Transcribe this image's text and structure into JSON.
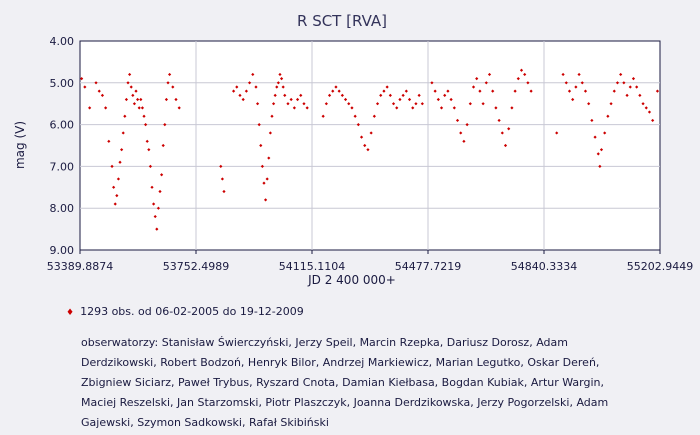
{
  "chart_data": {
    "type": "scatter",
    "title": "R SCT [RVA]",
    "xlabel": "JD 2 400 000+",
    "ylabel": "mag (V)",
    "xlim": [
      53389.8874,
      55202.9449
    ],
    "ylim": [
      4.0,
      9.0
    ],
    "y_inverted": true,
    "grid": true,
    "legend_placement": "bottom-left",
    "marker_color": "#cc0000",
    "x_ticks": [
      "53389.8874",
      "53752.4989",
      "54115.1104",
      "54477.7219",
      "54840.3334",
      "55202.9449"
    ],
    "y_ticks": [
      "4.00",
      "5.00",
      "6.00",
      "7.00",
      "8.00",
      "9.00"
    ],
    "series": [
      {
        "name": "1293 obs. od 06-02-2005 do 19-12-2009",
        "points": [
          [
            53395,
            4.9
          ],
          [
            53405,
            5.1
          ],
          [
            53420,
            5.6
          ],
          [
            53440,
            5.0
          ],
          [
            53450,
            5.2
          ],
          [
            53460,
            5.3
          ],
          [
            53470,
            5.6
          ],
          [
            53480,
            6.4
          ],
          [
            53490,
            7.0
          ],
          [
            53495,
            7.5
          ],
          [
            53500,
            7.9
          ],
          [
            53505,
            7.7
          ],
          [
            53510,
            7.3
          ],
          [
            53515,
            6.9
          ],
          [
            53520,
            6.6
          ],
          [
            53525,
            6.2
          ],
          [
            53530,
            5.8
          ],
          [
            53535,
            5.4
          ],
          [
            53540,
            5.0
          ],
          [
            53545,
            4.8
          ],
          [
            53550,
            5.1
          ],
          [
            53555,
            5.3
          ],
          [
            53560,
            5.5
          ],
          [
            53565,
            5.2
          ],
          [
            53570,
            5.4
          ],
          [
            53575,
            5.6
          ],
          [
            53580,
            5.4
          ],
          [
            53585,
            5.6
          ],
          [
            53590,
            5.8
          ],
          [
            53595,
            6.0
          ],
          [
            53600,
            6.4
          ],
          [
            53605,
            6.6
          ],
          [
            53610,
            7.0
          ],
          [
            53615,
            7.5
          ],
          [
            53620,
            7.9
          ],
          [
            53625,
            8.2
          ],
          [
            53630,
            8.5
          ],
          [
            53635,
            8.0
          ],
          [
            53640,
            7.6
          ],
          [
            53645,
            7.2
          ],
          [
            53650,
            6.5
          ],
          [
            53655,
            6.0
          ],
          [
            53660,
            5.4
          ],
          [
            53665,
            5.0
          ],
          [
            53670,
            4.8
          ],
          [
            53680,
            5.1
          ],
          [
            53690,
            5.4
          ],
          [
            53700,
            5.6
          ],
          [
            53830,
            7.0
          ],
          [
            53835,
            7.3
          ],
          [
            53840,
            7.6
          ],
          [
            53870,
            5.2
          ],
          [
            53880,
            5.1
          ],
          [
            53890,
            5.3
          ],
          [
            53900,
            5.4
          ],
          [
            53910,
            5.2
          ],
          [
            53920,
            5.0
          ],
          [
            53930,
            4.8
          ],
          [
            53940,
            5.1
          ],
          [
            53945,
            5.5
          ],
          [
            53950,
            6.0
          ],
          [
            53955,
            6.5
          ],
          [
            53960,
            7.0
          ],
          [
            53965,
            7.4
          ],
          [
            53970,
            7.8
          ],
          [
            53975,
            7.3
          ],
          [
            53980,
            6.8
          ],
          [
            53985,
            6.2
          ],
          [
            53990,
            5.8
          ],
          [
            53995,
            5.5
          ],
          [
            54000,
            5.3
          ],
          [
            54005,
            5.1
          ],
          [
            54010,
            5.0
          ],
          [
            54015,
            4.8
          ],
          [
            54020,
            4.9
          ],
          [
            54025,
            5.1
          ],
          [
            54030,
            5.3
          ],
          [
            54040,
            5.5
          ],
          [
            54050,
            5.4
          ],
          [
            54060,
            5.6
          ],
          [
            54070,
            5.4
          ],
          [
            54080,
            5.3
          ],
          [
            54090,
            5.5
          ],
          [
            54100,
            5.6
          ],
          [
            54150,
            5.8
          ],
          [
            54160,
            5.5
          ],
          [
            54170,
            5.3
          ],
          [
            54180,
            5.2
          ],
          [
            54190,
            5.1
          ],
          [
            54200,
            5.2
          ],
          [
            54210,
            5.3
          ],
          [
            54220,
            5.4
          ],
          [
            54230,
            5.5
          ],
          [
            54240,
            5.6
          ],
          [
            54250,
            5.8
          ],
          [
            54260,
            6.0
          ],
          [
            54270,
            6.3
          ],
          [
            54280,
            6.5
          ],
          [
            54290,
            6.6
          ],
          [
            54300,
            6.2
          ],
          [
            54310,
            5.8
          ],
          [
            54320,
            5.5
          ],
          [
            54330,
            5.3
          ],
          [
            54340,
            5.2
          ],
          [
            54350,
            5.1
          ],
          [
            54360,
            5.3
          ],
          [
            54370,
            5.5
          ],
          [
            54380,
            5.6
          ],
          [
            54390,
            5.4
          ],
          [
            54400,
            5.3
          ],
          [
            54410,
            5.2
          ],
          [
            54420,
            5.4
          ],
          [
            54430,
            5.6
          ],
          [
            54440,
            5.5
          ],
          [
            54450,
            5.3
          ],
          [
            54460,
            5.5
          ],
          [
            54490,
            5.0
          ],
          [
            54500,
            5.2
          ],
          [
            54510,
            5.4
          ],
          [
            54520,
            5.6
          ],
          [
            54530,
            5.3
          ],
          [
            54540,
            5.2
          ],
          [
            54550,
            5.4
          ],
          [
            54560,
            5.6
          ],
          [
            54570,
            5.9
          ],
          [
            54580,
            6.2
          ],
          [
            54590,
            6.4
          ],
          [
            54600,
            6.0
          ],
          [
            54610,
            5.5
          ],
          [
            54620,
            5.1
          ],
          [
            54630,
            4.9
          ],
          [
            54640,
            5.2
          ],
          [
            54650,
            5.5
          ],
          [
            54660,
            5.0
          ],
          [
            54670,
            4.8
          ],
          [
            54680,
            5.2
          ],
          [
            54690,
            5.6
          ],
          [
            54700,
            5.9
          ],
          [
            54710,
            6.2
          ],
          [
            54720,
            6.5
          ],
          [
            54730,
            6.1
          ],
          [
            54740,
            5.6
          ],
          [
            54750,
            5.2
          ],
          [
            54760,
            4.9
          ],
          [
            54770,
            4.7
          ],
          [
            54780,
            4.8
          ],
          [
            54790,
            5.0
          ],
          [
            54800,
            5.2
          ],
          [
            54880,
            6.2
          ],
          [
            54900,
            4.8
          ],
          [
            54910,
            5.0
          ],
          [
            54920,
            5.2
          ],
          [
            54930,
            5.4
          ],
          [
            54940,
            5.1
          ],
          [
            54950,
            4.8
          ],
          [
            54960,
            5.0
          ],
          [
            54970,
            5.2
          ],
          [
            54980,
            5.5
          ],
          [
            54990,
            5.9
          ],
          [
            55000,
            6.3
          ],
          [
            55010,
            6.7
          ],
          [
            55015,
            7.0
          ],
          [
            55020,
            6.6
          ],
          [
            55030,
            6.2
          ],
          [
            55040,
            5.8
          ],
          [
            55050,
            5.5
          ],
          [
            55060,
            5.2
          ],
          [
            55070,
            5.0
          ],
          [
            55080,
            4.8
          ],
          [
            55090,
            5.0
          ],
          [
            55100,
            5.3
          ],
          [
            55110,
            5.1
          ],
          [
            55120,
            4.9
          ],
          [
            55130,
            5.1
          ],
          [
            55140,
            5.3
          ],
          [
            55150,
            5.5
          ],
          [
            55160,
            5.6
          ],
          [
            55170,
            5.7
          ],
          [
            55180,
            5.9
          ],
          [
            55195,
            5.2
          ]
        ]
      }
    ]
  },
  "legend_text": "1293 obs. od 06-02-2005 do 19-12-2009",
  "observers_text": "obserwatorzy: Stanisław Świerczyński, Jerzy Speil, Marcin Rzepka, Dariusz Dorosz, Adam Derdzikowski, Robert Bodzoń, Henryk Bilor, Andrzej Markiewicz, Marian Legutko, Oskar Dereń, Zbigniew Siciarz, Paweł Trybus, Ryszard Cnota, Damian Kiełbasa, Bogdan Kubiak, Artur Wargin, Maciej Reszelski, Jan Starzomski, Piotr Plaszczyk, Joanna Derdzikowska, Jerzy Pogorzelski, Adam Gajewski, Szymon Sadkowski, Rafał Skibiński"
}
